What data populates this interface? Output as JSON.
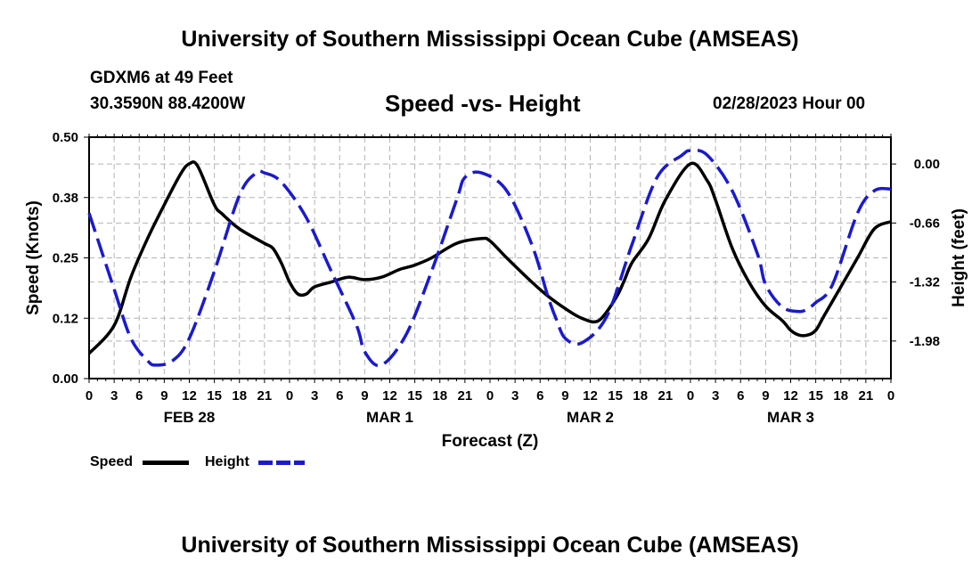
{
  "header": {
    "title": "University of Southern Mississippi Ocean Cube (AMSEAS)",
    "station": "GDXM6 at 49 Feet",
    "coords": "30.3590N  88.4200W",
    "subtitle": "Speed -vs- Height",
    "datetime": "02/28/2023 Hour 00"
  },
  "footer": {
    "title": "University of Southern Mississippi Ocean Cube (AMSEAS)"
  },
  "legend": {
    "speed_label": "Speed",
    "height_label": "Height"
  },
  "colors": {
    "speed": "#000000",
    "height": "#1a1ad0",
    "grid": "#b4b4b4"
  },
  "chart_data": {
    "type": "line",
    "title": "Speed -vs- Height",
    "xlabel": "Forecast (Z)",
    "ylabel": "Speed (Knots)",
    "y2label": "Height (feet)",
    "x_range": [
      0,
      96
    ],
    "ylim": [
      0,
      0.5
    ],
    "y2lim": [
      -2.4,
      0.3
    ],
    "x_tick_labels": [
      "0",
      "3",
      "6",
      "9",
      "12",
      "15",
      "18",
      "21",
      "0",
      "3",
      "6",
      "9",
      "12",
      "15",
      "18",
      "21",
      "0",
      "3",
      "6",
      "9",
      "12",
      "15",
      "18",
      "21",
      "0",
      "3",
      "6",
      "9",
      "12",
      "15",
      "18",
      "21",
      "0"
    ],
    "date_labels": [
      {
        "hour": 12,
        "label": "FEB 28"
      },
      {
        "hour": 36,
        "label": "MAR 1"
      },
      {
        "hour": 60,
        "label": "MAR 2"
      },
      {
        "hour": 84,
        "label": "MAR 3"
      }
    ],
    "y_ticks": [
      {
        "value": 0.0,
        "label": "0.00"
      },
      {
        "value": 0.125,
        "label": "0.12"
      },
      {
        "value": 0.25,
        "label": "0.25"
      },
      {
        "value": 0.375,
        "label": "0.38"
      },
      {
        "value": 0.5,
        "label": "0.50"
      }
    ],
    "y2_ticks": [
      {
        "value": 0.0,
        "label": "0.00"
      },
      {
        "value": -0.66,
        "label": "-0.66"
      },
      {
        "value": -1.32,
        "label": "-1.32"
      },
      {
        "value": -1.98,
        "label": "-1.98"
      }
    ],
    "series": [
      {
        "name": "Speed",
        "axis": "left",
        "style": "solid",
        "x": [
          0,
          3,
          5,
          7,
          9,
          11,
          12,
          13,
          15,
          16,
          18,
          21,
          22,
          23,
          24,
          25,
          26,
          27,
          29,
          31,
          33,
          35,
          37,
          38,
          39,
          41,
          44,
          47,
          48,
          50,
          53,
          55,
          57,
          59,
          61,
          63,
          64,
          65,
          67,
          69,
          72,
          74,
          75,
          77,
          79,
          81,
          83,
          84,
          85,
          86,
          87,
          88,
          90,
          92,
          94,
          96
        ],
        "values": [
          0.052,
          0.11,
          0.21,
          0.29,
          0.36,
          0.425,
          0.445,
          0.44,
          0.36,
          0.34,
          0.31,
          0.28,
          0.27,
          0.24,
          0.2,
          0.175,
          0.175,
          0.19,
          0.2,
          0.21,
          0.205,
          0.21,
          0.225,
          0.23,
          0.235,
          0.25,
          0.28,
          0.29,
          0.285,
          0.25,
          0.2,
          0.17,
          0.145,
          0.125,
          0.12,
          0.165,
          0.2,
          0.24,
          0.29,
          0.37,
          0.445,
          0.41,
          0.37,
          0.27,
          0.2,
          0.15,
          0.12,
          0.1,
          0.09,
          0.09,
          0.1,
          0.13,
          0.19,
          0.25,
          0.31,
          0.325
        ]
      },
      {
        "name": "Height",
        "axis": "right",
        "style": "dashed",
        "x": [
          0,
          3,
          5,
          7,
          8,
          10,
          12,
          15,
          18,
          20,
          21,
          23,
          26,
          29,
          32,
          33,
          35,
          38,
          41,
          44,
          45,
          47,
          50,
          53,
          55,
          56,
          57,
          59,
          62,
          65,
          68,
          71,
          72,
          74,
          77,
          80,
          81,
          83,
          85,
          86,
          87,
          89,
          92,
          94,
          96
        ],
        "values": [
          -0.55,
          -1.4,
          -1.95,
          -2.2,
          -2.25,
          -2.2,
          -1.95,
          -1.2,
          -0.35,
          -0.1,
          -0.1,
          -0.2,
          -0.6,
          -1.2,
          -1.8,
          -2.1,
          -2.25,
          -1.9,
          -1.2,
          -0.4,
          -0.15,
          -0.1,
          -0.3,
          -0.9,
          -1.5,
          -1.75,
          -1.95,
          -2.0,
          -1.7,
          -0.9,
          -0.15,
          0.1,
          0.15,
          0.1,
          -0.3,
          -1.0,
          -1.35,
          -1.6,
          -1.65,
          -1.62,
          -1.55,
          -1.35,
          -0.55,
          -0.3,
          -0.28
        ]
      }
    ]
  }
}
